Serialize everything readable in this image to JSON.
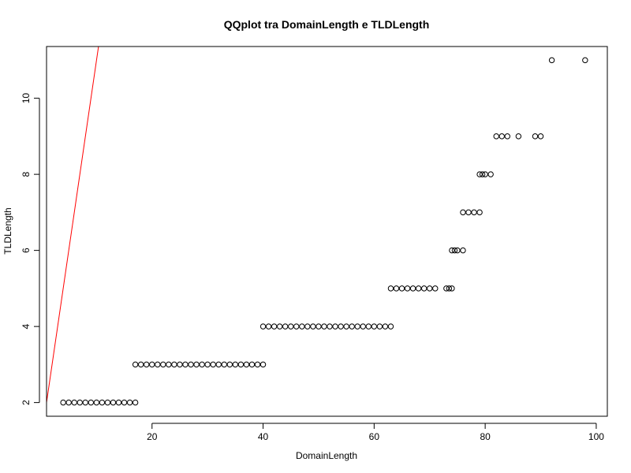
{
  "chart_data": {
    "type": "scatter",
    "title": "QQplot tra DomainLength e TLDLength",
    "xlabel": "DomainLength",
    "ylabel": "TLDLength",
    "xlim": [
      1,
      102
    ],
    "ylim": [
      1.64,
      11.36
    ],
    "xticks": [
      20,
      40,
      60,
      80,
      100
    ],
    "yticks": [
      2,
      4,
      6,
      8,
      10
    ],
    "grid": false,
    "legend": "none",
    "point_color": "#000000",
    "line_color": "#ff0000",
    "reference_line": {
      "intercept": 1.0,
      "slope": 1.0
    },
    "points": [
      {
        "x": 4,
        "y": 2
      },
      {
        "x": 5,
        "y": 2
      },
      {
        "x": 6,
        "y": 2
      },
      {
        "x": 7,
        "y": 2
      },
      {
        "x": 8,
        "y": 2
      },
      {
        "x": 9,
        "y": 2
      },
      {
        "x": 10,
        "y": 2
      },
      {
        "x": 11,
        "y": 2
      },
      {
        "x": 12,
        "y": 2
      },
      {
        "x": 13,
        "y": 2
      },
      {
        "x": 14,
        "y": 2
      },
      {
        "x": 15,
        "y": 2
      },
      {
        "x": 16,
        "y": 2
      },
      {
        "x": 17,
        "y": 2
      },
      {
        "x": 17,
        "y": 3
      },
      {
        "x": 18,
        "y": 3
      },
      {
        "x": 19,
        "y": 3
      },
      {
        "x": 20,
        "y": 3
      },
      {
        "x": 21,
        "y": 3
      },
      {
        "x": 22,
        "y": 3
      },
      {
        "x": 23,
        "y": 3
      },
      {
        "x": 24,
        "y": 3
      },
      {
        "x": 25,
        "y": 3
      },
      {
        "x": 26,
        "y": 3
      },
      {
        "x": 27,
        "y": 3
      },
      {
        "x": 28,
        "y": 3
      },
      {
        "x": 29,
        "y": 3
      },
      {
        "x": 30,
        "y": 3
      },
      {
        "x": 31,
        "y": 3
      },
      {
        "x": 32,
        "y": 3
      },
      {
        "x": 33,
        "y": 3
      },
      {
        "x": 34,
        "y": 3
      },
      {
        "x": 35,
        "y": 3
      },
      {
        "x": 36,
        "y": 3
      },
      {
        "x": 37,
        "y": 3
      },
      {
        "x": 38,
        "y": 3
      },
      {
        "x": 39,
        "y": 3
      },
      {
        "x": 40,
        "y": 3
      },
      {
        "x": 40,
        "y": 4
      },
      {
        "x": 41,
        "y": 4
      },
      {
        "x": 42,
        "y": 4
      },
      {
        "x": 43,
        "y": 4
      },
      {
        "x": 44,
        "y": 4
      },
      {
        "x": 45,
        "y": 4
      },
      {
        "x": 46,
        "y": 4
      },
      {
        "x": 47,
        "y": 4
      },
      {
        "x": 48,
        "y": 4
      },
      {
        "x": 49,
        "y": 4
      },
      {
        "x": 50,
        "y": 4
      },
      {
        "x": 51,
        "y": 4
      },
      {
        "x": 52,
        "y": 4
      },
      {
        "x": 53,
        "y": 4
      },
      {
        "x": 54,
        "y": 4
      },
      {
        "x": 55,
        "y": 4
      },
      {
        "x": 56,
        "y": 4
      },
      {
        "x": 57,
        "y": 4
      },
      {
        "x": 58,
        "y": 4
      },
      {
        "x": 59,
        "y": 4
      },
      {
        "x": 60,
        "y": 4
      },
      {
        "x": 61,
        "y": 4
      },
      {
        "x": 62,
        "y": 4
      },
      {
        "x": 63,
        "y": 4
      },
      {
        "x": 63,
        "y": 5
      },
      {
        "x": 64,
        "y": 5
      },
      {
        "x": 65,
        "y": 5
      },
      {
        "x": 66,
        "y": 5
      },
      {
        "x": 67,
        "y": 5
      },
      {
        "x": 68,
        "y": 5
      },
      {
        "x": 69,
        "y": 5
      },
      {
        "x": 70,
        "y": 5
      },
      {
        "x": 71,
        "y": 5
      },
      {
        "x": 73,
        "y": 5
      },
      {
        "x": 73.5,
        "y": 5
      },
      {
        "x": 74,
        "y": 5
      },
      {
        "x": 74,
        "y": 6
      },
      {
        "x": 74.5,
        "y": 6
      },
      {
        "x": 75,
        "y": 6
      },
      {
        "x": 76,
        "y": 6
      },
      {
        "x": 76,
        "y": 7
      },
      {
        "x": 77,
        "y": 7
      },
      {
        "x": 78,
        "y": 7
      },
      {
        "x": 79,
        "y": 7
      },
      {
        "x": 79,
        "y": 8
      },
      {
        "x": 79.5,
        "y": 8
      },
      {
        "x": 80,
        "y": 8
      },
      {
        "x": 81,
        "y": 8
      },
      {
        "x": 82,
        "y": 9
      },
      {
        "x": 83,
        "y": 9
      },
      {
        "x": 84,
        "y": 9
      },
      {
        "x": 86,
        "y": 9
      },
      {
        "x": 89,
        "y": 9
      },
      {
        "x": 90,
        "y": 9
      },
      {
        "x": 92,
        "y": 11
      },
      {
        "x": 98,
        "y": 11
      }
    ]
  }
}
